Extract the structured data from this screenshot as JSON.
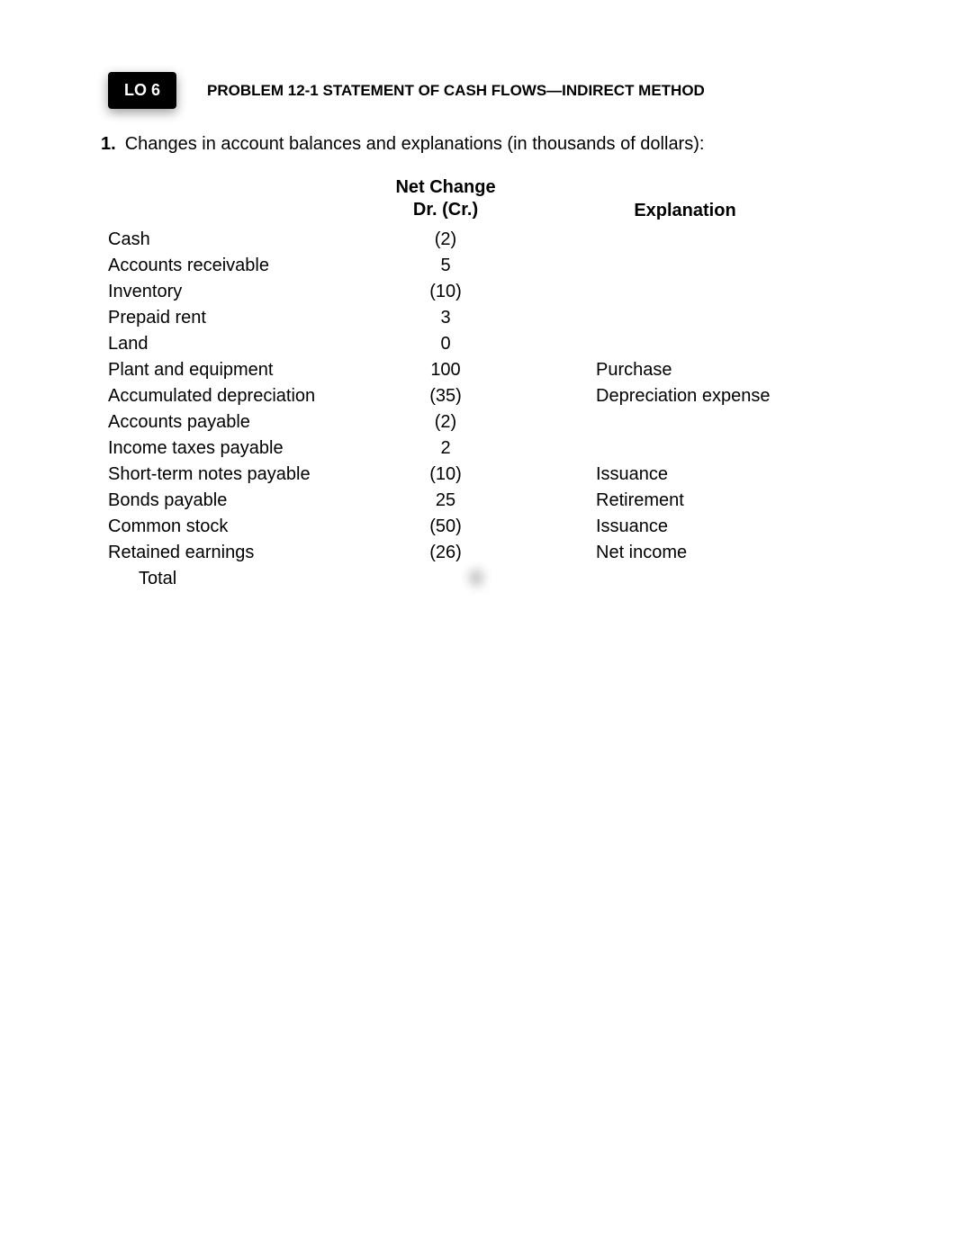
{
  "badge": "LO 6",
  "title": "PROBLEM 12-1 STATEMENT OF CASH FLOWS—INDIRECT METHOD",
  "intro_num": "1.",
  "intro_text": "Changes in account balances and explanations (in thousands of dollars):",
  "header": {
    "change_line1": "Net Change",
    "change_line2": "Dr. (Cr.)",
    "explanation": "Explanation"
  },
  "rows": [
    {
      "label": "Cash",
      "change": "(2)",
      "expl": ""
    },
    {
      "label": "Accounts receivable",
      "change": "5",
      "expl": ""
    },
    {
      "label": "Inventory",
      "change": "(10)",
      "expl": ""
    },
    {
      "label": "Prepaid rent",
      "change": "3",
      "expl": ""
    },
    {
      "label": "Land",
      "change": "0",
      "expl": ""
    },
    {
      "label": "Plant and equipment",
      "change": "100",
      "expl": "Purchase"
    },
    {
      "label": "Accumulated depreciation",
      "change": "(35)",
      "expl": "Depreciation expense"
    },
    {
      "label": "Accounts payable",
      "change": "(2)",
      "expl": ""
    },
    {
      "label": "Income taxes payable",
      "change": "2",
      "expl": ""
    },
    {
      "label": "Short-term notes payable",
      "change": "(10)",
      "expl": "Issuance"
    },
    {
      "label": "Bonds payable",
      "change": "25",
      "expl": "Retirement"
    },
    {
      "label": "Common stock",
      "change": "(50)",
      "expl": "Issuance"
    },
    {
      "label": "Retained earnings",
      "change": "(26)",
      "expl": "Net income"
    }
  ],
  "total_row": {
    "label": "Total",
    "change": "0",
    "expl": ""
  }
}
